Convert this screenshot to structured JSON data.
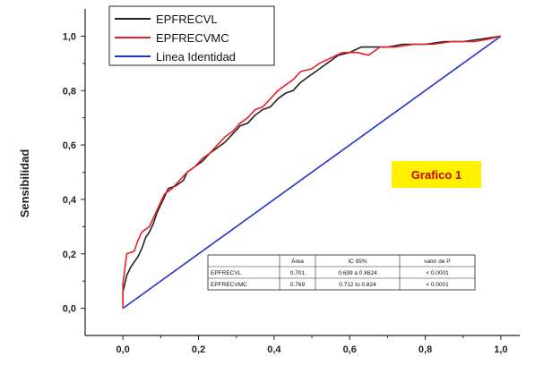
{
  "chart_data": {
    "type": "line",
    "xlabel": "",
    "ylabel": "Sensibilidad",
    "xlim": [
      -0.1,
      1.05
    ],
    "ylim": [
      -0.1,
      1.1
    ],
    "x_ticks": [
      "0,0",
      "0,2",
      "0,4",
      "0,6",
      "0,8",
      "1,0"
    ],
    "y_ticks": [
      "0,0",
      "0,2",
      "0,4",
      "0,6",
      "0,8",
      "1,0"
    ],
    "grid": false,
    "legend_position": "top-left",
    "series": [
      {
        "name": "EPFRECVL",
        "color": "#222222",
        "points": [
          [
            0,
            0
          ],
          [
            0,
            0.06
          ],
          [
            0.01,
            0.12
          ],
          [
            0.02,
            0.15
          ],
          [
            0.03,
            0.17
          ],
          [
            0.04,
            0.19
          ],
          [
            0.05,
            0.22
          ],
          [
            0.06,
            0.26
          ],
          [
            0.07,
            0.28
          ],
          [
            0.08,
            0.31
          ],
          [
            0.09,
            0.35
          ],
          [
            0.1,
            0.38
          ],
          [
            0.11,
            0.41
          ],
          [
            0.12,
            0.44
          ],
          [
            0.14,
            0.45
          ],
          [
            0.16,
            0.47
          ],
          [
            0.17,
            0.5
          ],
          [
            0.19,
            0.52
          ],
          [
            0.21,
            0.54
          ],
          [
            0.23,
            0.57
          ],
          [
            0.25,
            0.59
          ],
          [
            0.27,
            0.61
          ],
          [
            0.29,
            0.64
          ],
          [
            0.31,
            0.67
          ],
          [
            0.33,
            0.68
          ],
          [
            0.35,
            0.71
          ],
          [
            0.37,
            0.73
          ],
          [
            0.39,
            0.74
          ],
          [
            0.41,
            0.77
          ],
          [
            0.43,
            0.79
          ],
          [
            0.45,
            0.8
          ],
          [
            0.47,
            0.83
          ],
          [
            0.49,
            0.85
          ],
          [
            0.51,
            0.87
          ],
          [
            0.53,
            0.89
          ],
          [
            0.55,
            0.91
          ],
          [
            0.57,
            0.93
          ],
          [
            0.6,
            0.94
          ],
          [
            0.63,
            0.96
          ],
          [
            0.66,
            0.96
          ],
          [
            0.7,
            0.96
          ],
          [
            0.74,
            0.97
          ],
          [
            0.8,
            0.97
          ],
          [
            0.85,
            0.98
          ],
          [
            0.9,
            0.98
          ],
          [
            0.95,
            0.99
          ],
          [
            1,
            1
          ]
        ]
      },
      {
        "name": "EPFRECVMC",
        "color": "#e8202a",
        "points": [
          [
            0,
            0
          ],
          [
            0,
            0.09
          ],
          [
            0.01,
            0.2
          ],
          [
            0.03,
            0.21
          ],
          [
            0.04,
            0.25
          ],
          [
            0.05,
            0.28
          ],
          [
            0.07,
            0.3
          ],
          [
            0.08,
            0.33
          ],
          [
            0.09,
            0.36
          ],
          [
            0.1,
            0.39
          ],
          [
            0.11,
            0.42
          ],
          [
            0.13,
            0.44
          ],
          [
            0.15,
            0.47
          ],
          [
            0.17,
            0.5
          ],
          [
            0.19,
            0.52
          ],
          [
            0.21,
            0.55
          ],
          [
            0.23,
            0.57
          ],
          [
            0.25,
            0.6
          ],
          [
            0.27,
            0.63
          ],
          [
            0.29,
            0.65
          ],
          [
            0.31,
            0.68
          ],
          [
            0.33,
            0.7
          ],
          [
            0.35,
            0.73
          ],
          [
            0.37,
            0.74
          ],
          [
            0.39,
            0.77
          ],
          [
            0.41,
            0.8
          ],
          [
            0.43,
            0.82
          ],
          [
            0.45,
            0.84
          ],
          [
            0.47,
            0.87
          ],
          [
            0.5,
            0.88
          ],
          [
            0.52,
            0.9
          ],
          [
            0.55,
            0.92
          ],
          [
            0.58,
            0.94
          ],
          [
            0.62,
            0.94
          ],
          [
            0.65,
            0.93
          ],
          [
            0.68,
            0.96
          ],
          [
            0.72,
            0.96
          ],
          [
            0.77,
            0.97
          ],
          [
            0.82,
            0.97
          ],
          [
            0.87,
            0.98
          ],
          [
            0.93,
            0.98
          ],
          [
            0.97,
            0.99
          ],
          [
            1,
            1
          ]
        ]
      },
      {
        "name": "Linea Identidad",
        "color": "#2233cc",
        "points": [
          [
            0,
            0
          ],
          [
            1,
            1
          ]
        ]
      }
    ],
    "annotation": "Grafico 1",
    "stats_table": {
      "headers": [
        "",
        "Área",
        "IC 95%",
        "valor de P"
      ],
      "rows": [
        [
          "EPFRECVL",
          "0.701",
          "0.699 a 0.8624",
          "< 0.0001"
        ],
        [
          "EPFRECVMC",
          "0.769",
          "0.712 to 0.824",
          "< 0.0001"
        ]
      ]
    }
  }
}
